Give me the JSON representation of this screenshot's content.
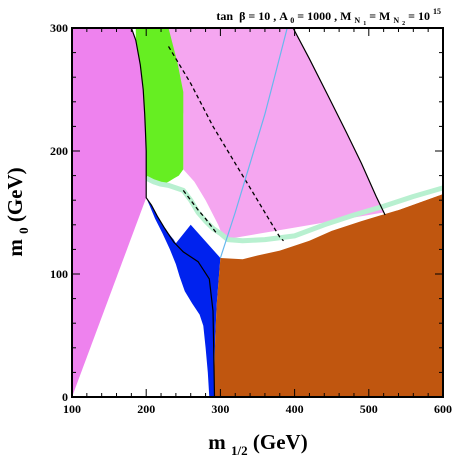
{
  "chart_data": {
    "type": "area",
    "title": {
      "tan": "tan",
      "beta": "β",
      "eq1": " = 10 ,  A",
      "a_sub": "0",
      "eq2": " = 1000 , M",
      "mn_sub1": "N",
      "mn_sub1_sub": "1",
      "eq3": " = M",
      "mn_sub2": "N",
      "mn_sub2_sub": "2",
      "eq4": " = 10",
      "exp": "15"
    },
    "xlabel": {
      "main": "m",
      "sub": "1/2",
      "unit": " (GeV)"
    },
    "ylabel": {
      "main": "m",
      "sub": "0",
      "unit": " (GeV)"
    },
    "xlim": [
      100,
      600
    ],
    "ylim": [
      0,
      300
    ],
    "x_ticks": [
      100,
      200,
      300,
      400,
      500,
      600
    ],
    "y_ticks": [
      0,
      100,
      200,
      300
    ],
    "regions": [
      {
        "name": "violet-region",
        "color": "#ee82ee",
        "points": [
          [
            100,
            0
          ],
          [
            100,
            300
          ],
          [
            180,
            300
          ],
          [
            186,
            290
          ],
          [
            192,
            270
          ],
          [
            196,
            250
          ],
          [
            198,
            230
          ],
          [
            199,
            215
          ],
          [
            200,
            200
          ],
          [
            200,
            180
          ],
          [
            200,
            162
          ]
        ]
      },
      {
        "name": "pink-region",
        "color": "#f5a6f0",
        "points": [
          [
            230,
            300
          ],
          [
            398,
            300
          ],
          [
            420,
            275
          ],
          [
            445,
            245
          ],
          [
            470,
            215
          ],
          [
            490,
            190
          ],
          [
            510,
            163
          ],
          [
            520,
            150
          ],
          [
            305,
            128
          ],
          [
            297,
            140
          ],
          [
            280,
            160
          ],
          [
            265,
            175
          ],
          [
            250,
            185
          ],
          [
            250,
            230
          ],
          [
            240,
            270
          ],
          [
            230,
            290
          ]
        ]
      },
      {
        "name": "green-region",
        "color": "#66ee22",
        "points": [
          [
            186,
            300
          ],
          [
            230,
            300
          ],
          [
            242,
            272
          ],
          [
            250,
            248
          ],
          [
            250,
            185
          ],
          [
            244,
            180
          ],
          [
            238,
            178
          ],
          [
            230,
            175
          ],
          [
            220,
            172
          ],
          [
            210,
            173
          ],
          [
            200,
            178
          ],
          [
            200,
            200
          ],
          [
            199,
            215
          ],
          [
            198,
            230
          ],
          [
            196,
            250
          ],
          [
            192,
            270
          ],
          [
            186,
            290
          ]
        ]
      },
      {
        "name": "blue-region",
        "color": "#0022ee",
        "points": [
          [
            200,
            162
          ],
          [
            207,
            156
          ],
          [
            215,
            147
          ],
          [
            222,
            140
          ],
          [
            230,
            133
          ],
          [
            237,
            128
          ],
          [
            240,
            125
          ],
          [
            260,
            140
          ],
          [
            300,
            113
          ],
          [
            298,
            98
          ],
          [
            295,
            75
          ],
          [
            293,
            48
          ],
          [
            292,
            25
          ],
          [
            292,
            0
          ],
          [
            285,
            0
          ],
          [
            283,
            20
          ],
          [
            280,
            40
          ],
          [
            277,
            58
          ],
          [
            272,
            67
          ],
          [
            262,
            76
          ],
          [
            252,
            86
          ],
          [
            245,
            98
          ],
          [
            240,
            108
          ],
          [
            232,
            120
          ],
          [
            222,
            133
          ],
          [
            212,
            145
          ],
          [
            205,
            155
          ]
        ]
      },
      {
        "name": "orange-region",
        "color": "#c0560f",
        "points": [
          [
            292,
            0
          ],
          [
            600,
            0
          ],
          [
            600,
            165
          ],
          [
            540,
            152
          ],
          [
            490,
            143
          ],
          [
            450,
            135
          ],
          [
            420,
            127
          ],
          [
            380,
            119
          ],
          [
            350,
            115
          ],
          [
            330,
            112
          ],
          [
            300,
            113
          ],
          [
            298,
            98
          ],
          [
            295,
            75
          ],
          [
            293,
            48
          ],
          [
            292,
            25
          ]
        ]
      },
      {
        "name": "white-corner",
        "color": "#ffffff",
        "points": [
          [
            398,
            300
          ],
          [
            600,
            300
          ],
          [
            600,
            165
          ],
          [
            540,
            152
          ],
          [
            520,
            150
          ],
          [
            510,
            163
          ],
          [
            490,
            190
          ],
          [
            470,
            215
          ],
          [
            445,
            245
          ],
          [
            420,
            275
          ]
        ]
      }
    ],
    "curves": [
      {
        "name": "boundary-black",
        "color": "#000000",
        "style": "solid",
        "points": [
          [
            180,
            300
          ],
          [
            186,
            290
          ],
          [
            192,
            270
          ],
          [
            196,
            250
          ],
          [
            198,
            230
          ],
          [
            199,
            215
          ],
          [
            200,
            200
          ],
          [
            200,
            180
          ],
          [
            200,
            162
          ],
          [
            207,
            156
          ],
          [
            215,
            147
          ],
          [
            225,
            137
          ],
          [
            237,
            126
          ],
          [
            250,
            118
          ],
          [
            270,
            110
          ],
          [
            285,
            96
          ],
          [
            290,
            70
          ],
          [
            291,
            40
          ],
          [
            292,
            0
          ]
        ]
      },
      {
        "name": "boundary-right",
        "color": "#000000",
        "style": "solid",
        "points": [
          [
            398,
            300
          ],
          [
            420,
            275
          ],
          [
            445,
            245
          ],
          [
            470,
            215
          ],
          [
            490,
            190
          ],
          [
            510,
            163
          ],
          [
            522,
            148
          ]
        ]
      },
      {
        "name": "dashed-upper",
        "color": "#000000",
        "style": "dashed",
        "points": [
          [
            230,
            285
          ],
          [
            260,
            255
          ],
          [
            290,
            220
          ],
          [
            320,
            190
          ],
          [
            345,
            165
          ],
          [
            365,
            145
          ],
          [
            380,
            130
          ],
          [
            385,
            127
          ]
        ]
      },
      {
        "name": "dashed-lower",
        "color": "#000000",
        "style": "dashed",
        "points": [
          [
            250,
            168
          ],
          [
            260,
            160
          ],
          [
            270,
            152
          ],
          [
            280,
            145
          ],
          [
            295,
            133
          ]
        ]
      },
      {
        "name": "cyan-line",
        "color": "#66b8ee",
        "style": "solid",
        "points": [
          [
            300,
            113
          ],
          [
            320,
            150
          ],
          [
            340,
            190
          ],
          [
            360,
            230
          ],
          [
            375,
            265
          ],
          [
            390,
            300
          ]
        ]
      }
    ],
    "band": {
      "name": "relic-band",
      "color": "#b8f0d0",
      "points": [
        [
          200,
          178
        ],
        [
          210,
          175
        ],
        [
          220,
          173
        ],
        [
          230,
          172
        ],
        [
          240,
          170
        ],
        [
          250,
          168
        ],
        [
          260,
          160
        ],
        [
          270,
          150
        ],
        [
          280,
          143
        ],
        [
          290,
          137
        ],
        [
          300,
          133
        ],
        [
          310,
          128
        ],
        [
          330,
          127
        ],
        [
          360,
          128
        ],
        [
          400,
          131
        ],
        [
          440,
          140
        ],
        [
          480,
          148
        ],
        [
          520,
          155
        ],
        [
          560,
          163
        ],
        [
          600,
          170
        ]
      ]
    }
  }
}
